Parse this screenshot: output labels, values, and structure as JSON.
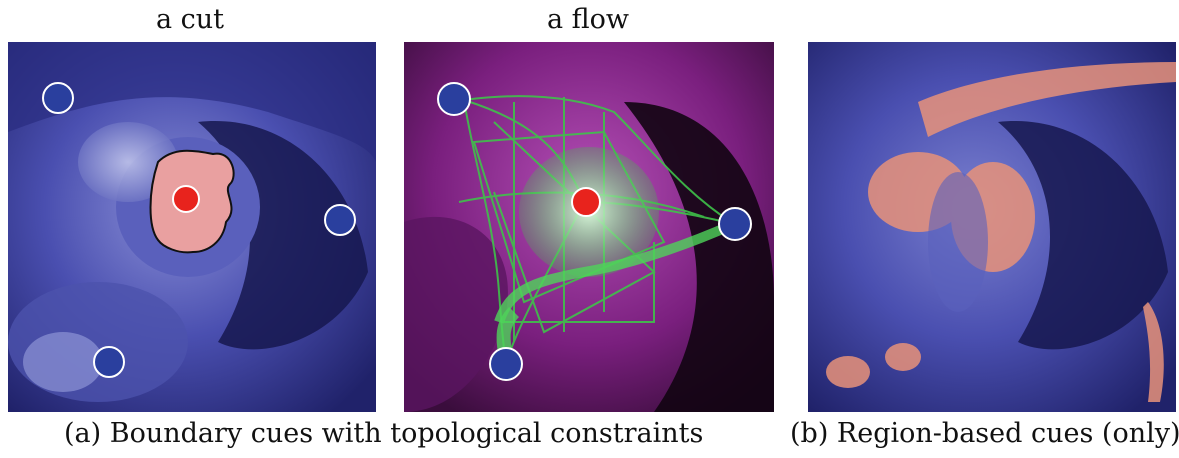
{
  "figure": {
    "panels": [
      {
        "title": "a cut"
      },
      {
        "title": "a flow"
      },
      {
        "title": ""
      }
    ],
    "captions": {
      "a": "(a) Boundary cues with topological constraints",
      "b": "(b) Region-based cues (only)"
    },
    "colors": {
      "background_mri": "#2e2f86",
      "flow_background": "#7a1f7e",
      "seed_foreground": "#e8231d",
      "seed_background": "#2a3f9e",
      "cut_region": "#e9a0a0",
      "flow_lines": "#3fc24a",
      "region_cue": "#e8927a"
    }
  }
}
